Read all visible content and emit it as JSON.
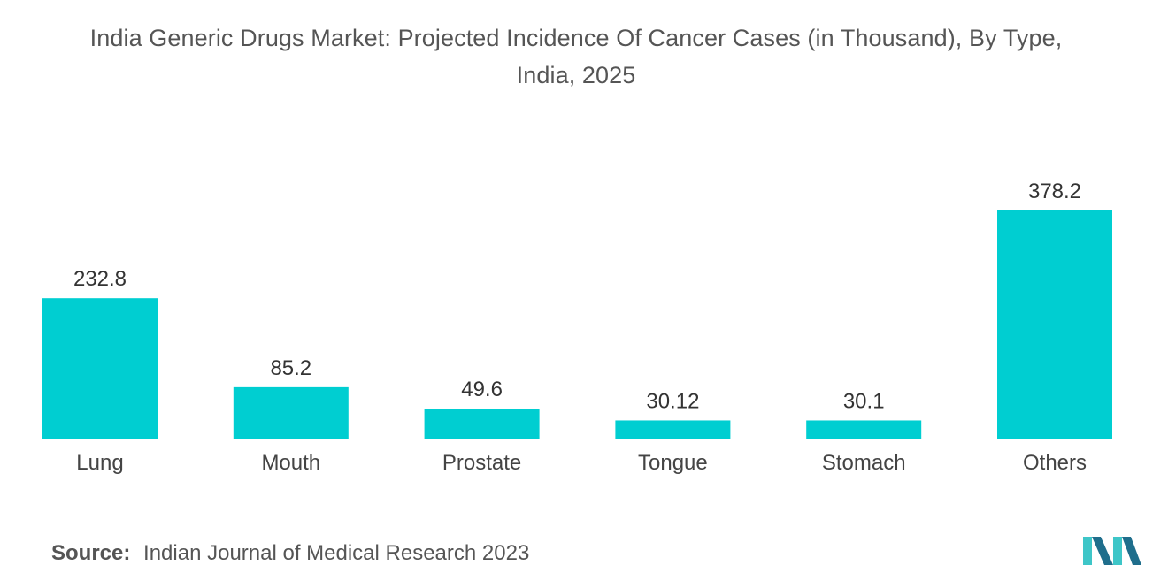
{
  "title_line1": "India Generic Drugs Market: Projected Incidence Of Cancer Cases (in Thousand), By Type,",
  "title_line2": "India, 2025",
  "source_label": "Source:",
  "source_text": "Indian Journal of Medical Research 2023",
  "logo_icon": "mordor-intelligence-logo-icon",
  "colors": {
    "bar": "#00CED1",
    "logo_dark": "#1F6E8C",
    "logo_light": "#3EC6C8"
  },
  "chart_data": {
    "type": "bar",
    "title": "India Generic Drugs Market: Projected Incidence Of Cancer Cases (in Thousand), By Type, India, 2025",
    "xlabel": "",
    "ylabel": "",
    "categories": [
      "Lung",
      "Mouth",
      "Prostate",
      "Tongue",
      "Stomach",
      "Others"
    ],
    "values": [
      232.8,
      85.2,
      49.6,
      30.12,
      30.1,
      378.2
    ],
    "value_labels": [
      "232.8",
      "85.2",
      "49.6",
      "30.12",
      "30.1",
      "378.2"
    ],
    "ylim": [
      0,
      378.2
    ],
    "grid": false,
    "legend": "none"
  }
}
